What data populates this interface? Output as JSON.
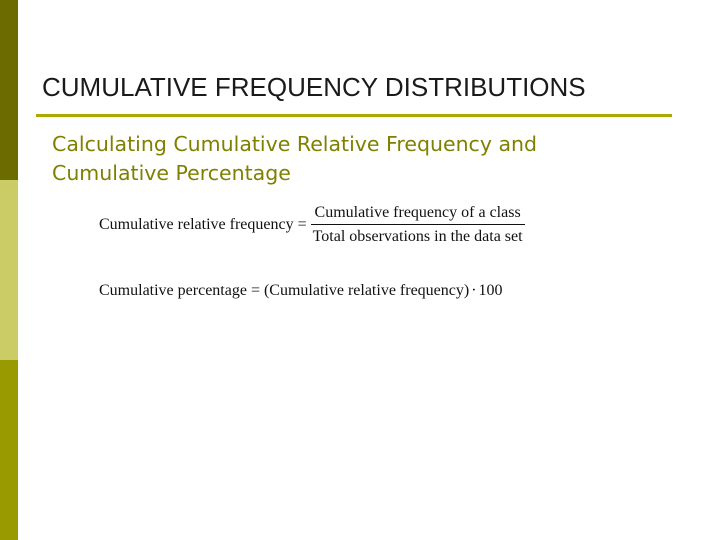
{
  "colors": {
    "strip_top": "#6b6b00",
    "strip_middle": "#cccc66",
    "strip_bottom": "#999900",
    "title_rule": "#aaaa00",
    "subtitle_text": "#808000"
  },
  "slide": {
    "title": "CUMULATIVE FREQUENCY DISTRIBUTIONS",
    "subtitle_line1": "Calculating Cumulative Relative Frequency and",
    "subtitle_line2": "Cumulative Percentage"
  },
  "formulas": {
    "relative": {
      "lhs": "Cumulative relative frequency",
      "operator": "=",
      "numerator": "Cumulative frequency of a class",
      "denominator": "Total observations in the data set"
    },
    "percentage": {
      "lhs": "Cumulative percentage",
      "operator": "=",
      "expression": "(Cumulative relative frequency)",
      "dot": "·",
      "multiplier": "100"
    }
  }
}
